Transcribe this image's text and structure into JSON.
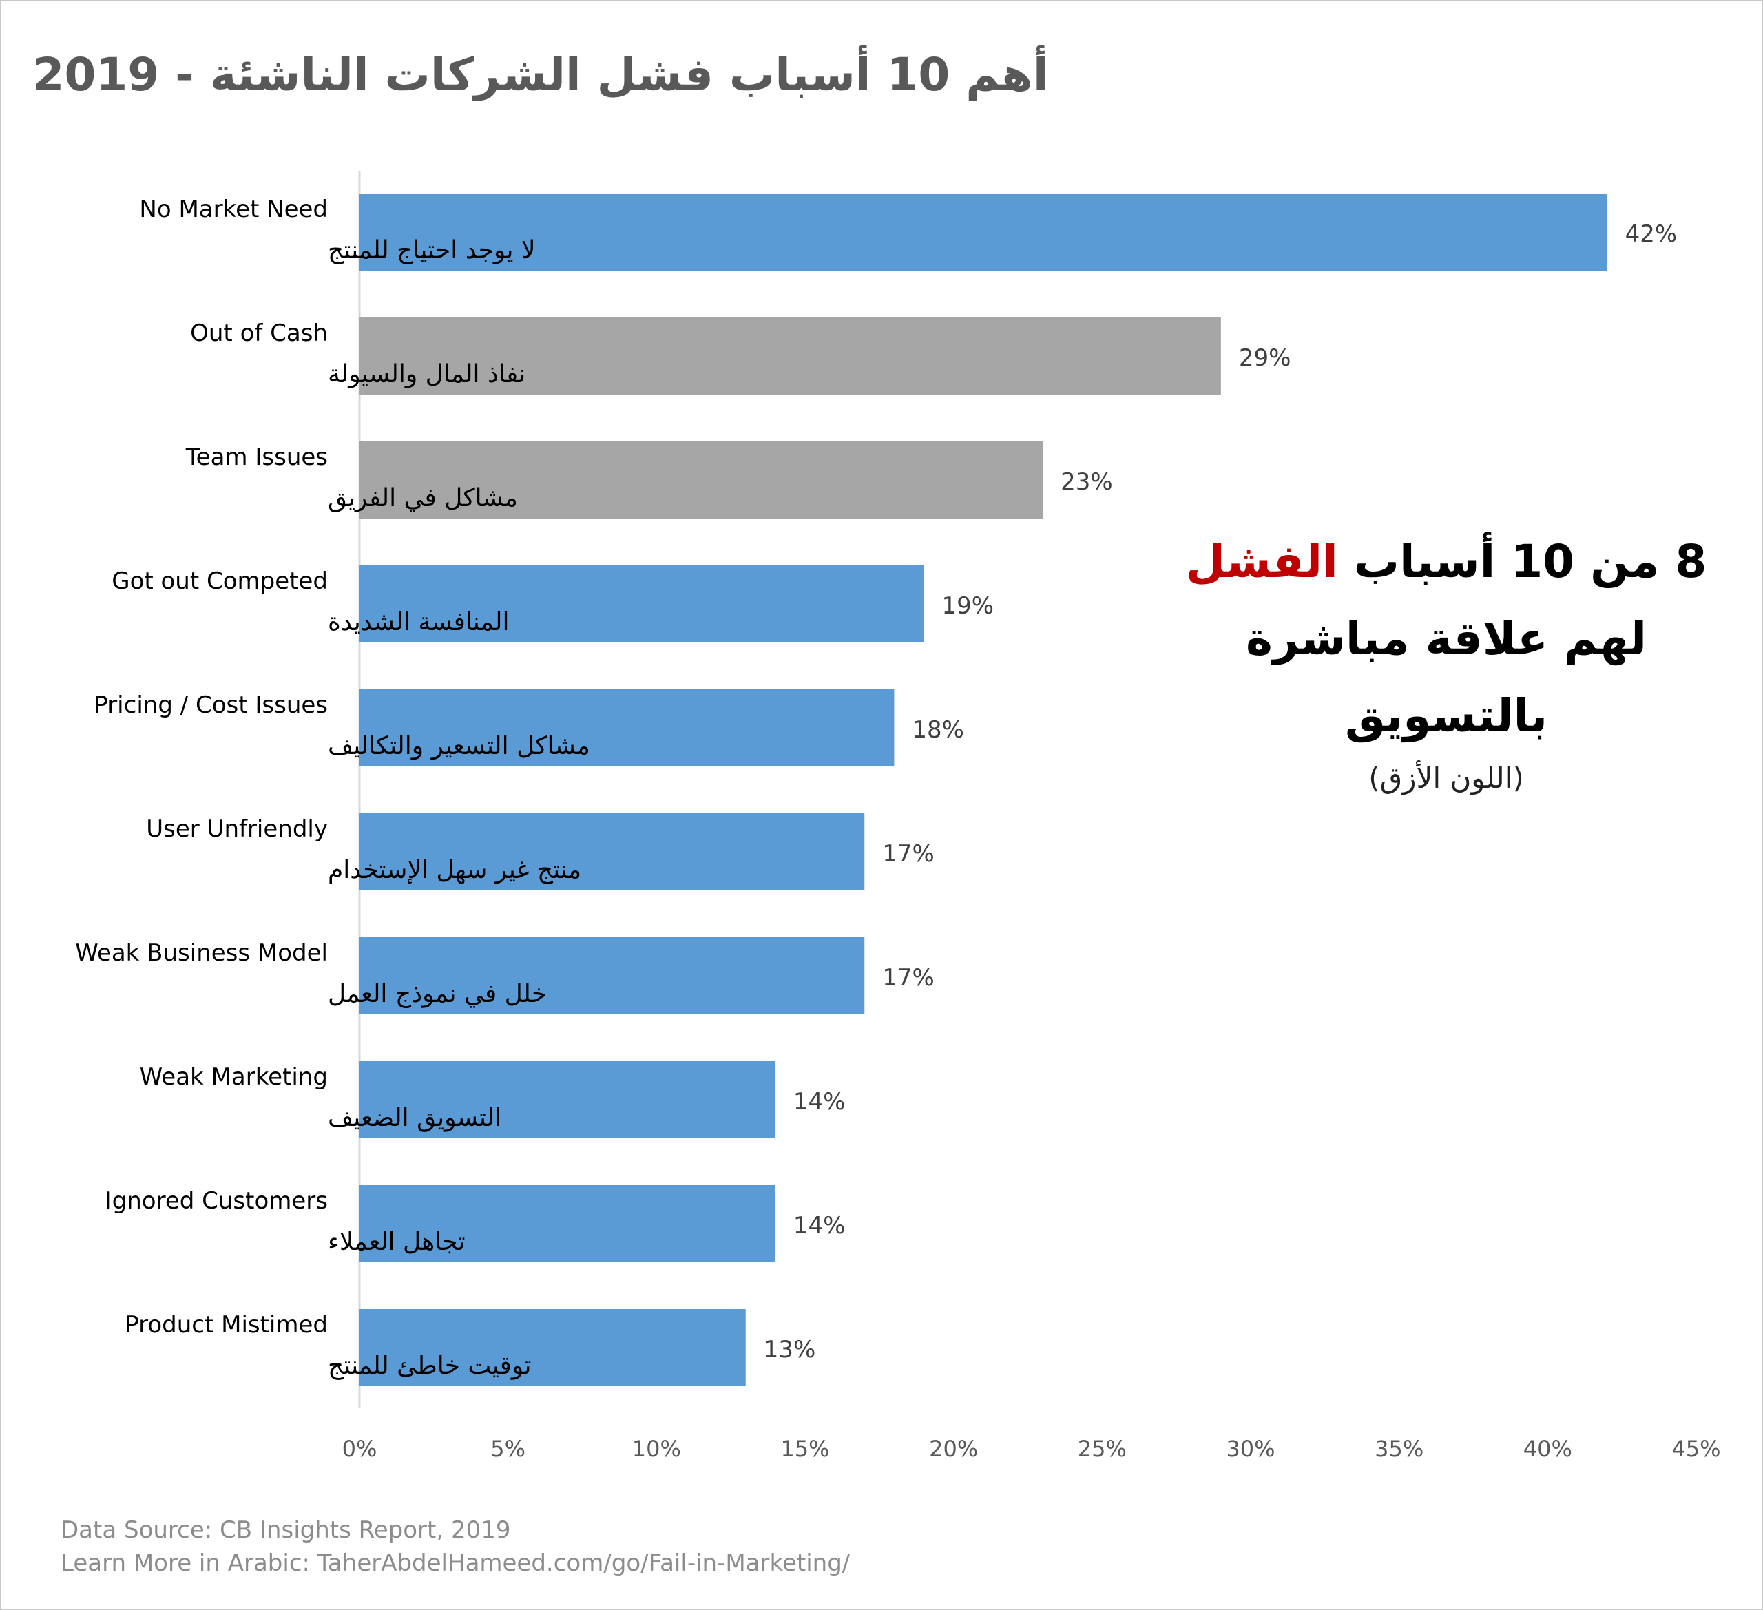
{
  "title": "أهم 10 أسباب فشل الشركات الناشئة - 2019",
  "annotation": {
    "line1_prefix": "8 من 10 أسباب",
    "line1_accent": "الفشل",
    "line2": "لهم علاقة مباشرة",
    "line3": "بالتسويق",
    "note": "(اللون الأزق)"
  },
  "footer": {
    "source": "Data Source: CB Insights Report, 2019",
    "learn_more": "Learn More in Arabic: TaherAbdelHameed.com/go/Fail-in-Marketing/"
  },
  "colors": {
    "marketing": "#5b9bd5",
    "other": "#a6a6a6",
    "accent": "#c00000",
    "axis": "#d9d9d9",
    "tick_text": "#595959"
  },
  "chart_data": {
    "type": "bar",
    "orientation": "horizontal",
    "categories": [
      {
        "en": "No Market Need",
        "ar": "لا يوجد احتياج للمنتج"
      },
      {
        "en": "Out of Cash",
        "ar": "نفاذ المال والسيولة"
      },
      {
        "en": "Team Issues",
        "ar": "مشاكل في الفريق"
      },
      {
        "en": "Got out Competed",
        "ar": "المنافسة الشديدة"
      },
      {
        "en": "Pricing / Cost Issues",
        "ar": "مشاكل التسعير والتكاليف"
      },
      {
        "en": "User Unfriendly",
        "ar": "منتج غير سهل الإستخدام"
      },
      {
        "en": "Weak Business Model",
        "ar": "خلل في نموذج العمل"
      },
      {
        "en": "Weak Marketing",
        "ar": "التسويق الضعيف"
      },
      {
        "en": "Ignored Customers",
        "ar": "تجاهل العملاء"
      },
      {
        "en": "Product Mistimed",
        "ar": "توقيت خاطئ للمنتج"
      }
    ],
    "values": [
      42,
      29,
      23,
      19,
      18,
      17,
      17,
      14,
      14,
      13
    ],
    "value_labels": [
      "42%",
      "29%",
      "23%",
      "19%",
      "18%",
      "17%",
      "17%",
      "14%",
      "14%",
      "13%"
    ],
    "marketing_related": [
      true,
      false,
      false,
      true,
      true,
      true,
      true,
      true,
      true,
      true
    ],
    "xlim": [
      0,
      45
    ],
    "xticks": [
      0,
      5,
      10,
      15,
      20,
      25,
      30,
      35,
      40,
      45
    ],
    "xtick_labels": [
      "0%",
      "5%",
      "10%",
      "15%",
      "20%",
      "25%",
      "30%",
      "35%",
      "40%",
      "45%"
    ],
    "grid": false,
    "legend": "none"
  }
}
